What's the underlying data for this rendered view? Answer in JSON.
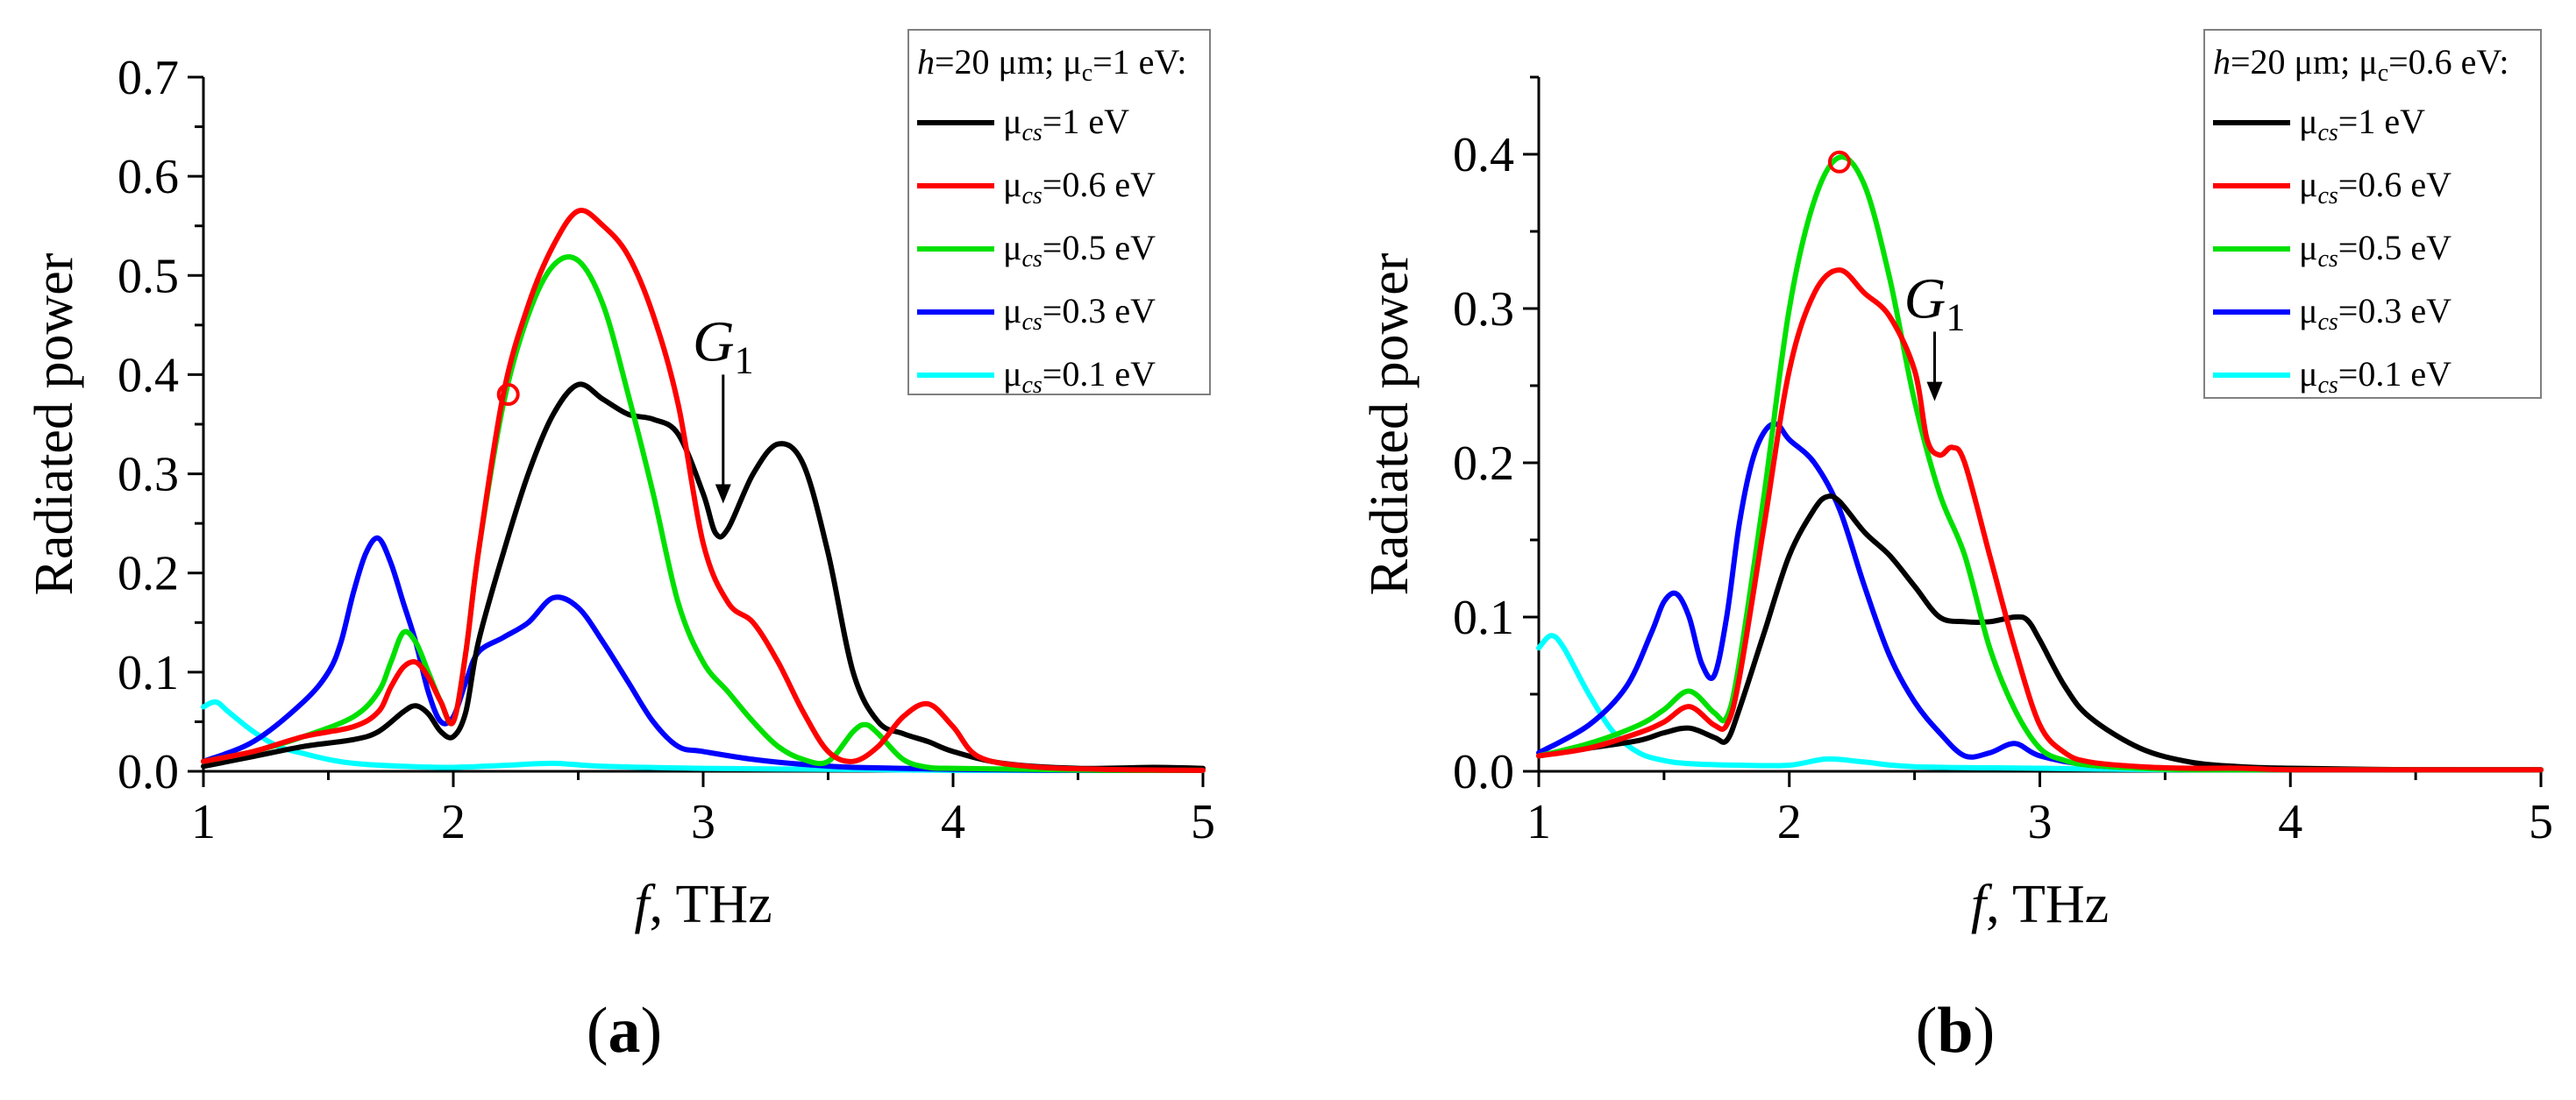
{
  "figure": {
    "panels": [
      {
        "label_open": "(",
        "label": "a",
        "label_close": ")"
      },
      {
        "label_open": "(",
        "label": "b",
        "label_close": ")"
      }
    ]
  },
  "chart_data": [
    {
      "type": "line",
      "panel": "a",
      "title": "",
      "xlabel_italic": "f",
      "xlabel_rest": ", THz",
      "ylabel": "Radiated power",
      "xlim": [
        1,
        5
      ],
      "ylim": [
        0,
        0.7
      ],
      "xticks": [
        1,
        2,
        3,
        4,
        5
      ],
      "yticks": [
        0.0,
        0.1,
        0.2,
        0.3,
        0.4,
        0.5,
        0.6,
        0.7
      ],
      "ytick_labels": [
        "0.0",
        "0.1",
        "0.2",
        "0.3",
        "0.4",
        "0.5",
        "0.6",
        "0.7"
      ],
      "legend": {
        "position": "top-right",
        "header": {
          "h": "h",
          "eq": "=20 μm; μ",
          "sub": "c",
          "rest": "=1 eV:"
        }
      },
      "annotation": {
        "text": "G",
        "sub": "1",
        "x": 3.08,
        "y_from": 0.4,
        "y_to": 0.27
      },
      "marker": {
        "x": 2.22,
        "y": 0.38
      },
      "series": [
        {
          "mu": "μ",
          "sub": "cs",
          "rest": "=1 eV",
          "color": "#000000",
          "x": [
            1.0,
            1.2,
            1.4,
            1.6,
            1.7,
            1.8,
            1.85,
            1.9,
            1.95,
            2.0,
            2.05,
            2.1,
            2.2,
            2.3,
            2.4,
            2.5,
            2.6,
            2.7,
            2.8,
            2.9,
            3.0,
            3.05,
            3.1,
            3.2,
            3.3,
            3.4,
            3.5,
            3.6,
            3.7,
            3.8,
            3.9,
            4.0,
            4.2,
            4.5,
            4.8,
            5.0
          ],
          "y": [
            0.005,
            0.015,
            0.025,
            0.032,
            0.04,
            0.06,
            0.066,
            0.058,
            0.04,
            0.035,
            0.06,
            0.13,
            0.22,
            0.3,
            0.36,
            0.39,
            0.375,
            0.36,
            0.355,
            0.34,
            0.28,
            0.24,
            0.245,
            0.3,
            0.33,
            0.31,
            0.22,
            0.1,
            0.05,
            0.038,
            0.03,
            0.02,
            0.008,
            0.003,
            0.004,
            0.003
          ]
        },
        {
          "mu": "μ",
          "sub": "cs",
          "rest": "=0.6 eV",
          "color": "#ff0000",
          "x": [
            1.0,
            1.2,
            1.4,
            1.6,
            1.7,
            1.75,
            1.8,
            1.85,
            1.9,
            1.95,
            2.0,
            2.05,
            2.1,
            2.2,
            2.3,
            2.4,
            2.5,
            2.6,
            2.7,
            2.8,
            2.9,
            3.0,
            3.1,
            3.2,
            3.3,
            3.4,
            3.5,
            3.6,
            3.7,
            3.8,
            3.9,
            4.0,
            4.1,
            4.3,
            4.6,
            5.0
          ],
          "y": [
            0.01,
            0.02,
            0.035,
            0.045,
            0.06,
            0.085,
            0.105,
            0.11,
            0.095,
            0.07,
            0.05,
            0.12,
            0.22,
            0.38,
            0.47,
            0.53,
            0.565,
            0.55,
            0.52,
            0.46,
            0.37,
            0.23,
            0.17,
            0.15,
            0.11,
            0.06,
            0.02,
            0.01,
            0.025,
            0.055,
            0.068,
            0.045,
            0.015,
            0.005,
            0.002,
            0.001
          ]
        },
        {
          "mu": "μ",
          "sub": "cs",
          "rest": "=0.5 eV",
          "color": "#00e000",
          "x": [
            1.0,
            1.2,
            1.4,
            1.6,
            1.7,
            1.75,
            1.8,
            1.85,
            1.9,
            1.95,
            2.0,
            2.05,
            2.1,
            2.2,
            2.3,
            2.4,
            2.5,
            2.6,
            2.7,
            2.8,
            2.9,
            3.0,
            3.1,
            3.2,
            3.3,
            3.4,
            3.5,
            3.6,
            3.65,
            3.7,
            3.8,
            3.9,
            4.0,
            4.3,
            4.6,
            5.0
          ],
          "y": [
            0.01,
            0.02,
            0.035,
            0.055,
            0.08,
            0.11,
            0.14,
            0.13,
            0.1,
            0.07,
            0.05,
            0.12,
            0.22,
            0.37,
            0.46,
            0.51,
            0.515,
            0.47,
            0.38,
            0.28,
            0.17,
            0.11,
            0.08,
            0.05,
            0.025,
            0.012,
            0.01,
            0.04,
            0.047,
            0.038,
            0.012,
            0.004,
            0.003,
            0.002,
            0.001,
            0.001
          ]
        },
        {
          "mu": "μ",
          "sub": "cs",
          "rest": "=0.3 eV",
          "color": "#0000ff",
          "x": [
            1.0,
            1.2,
            1.4,
            1.5,
            1.55,
            1.6,
            1.65,
            1.7,
            1.75,
            1.8,
            1.85,
            1.9,
            1.95,
            2.0,
            2.05,
            2.1,
            2.2,
            2.3,
            2.4,
            2.5,
            2.6,
            2.7,
            2.8,
            2.9,
            3.0,
            3.2,
            3.4,
            3.6,
            4.0,
            4.5,
            5.0
          ],
          "y": [
            0.01,
            0.03,
            0.07,
            0.1,
            0.13,
            0.18,
            0.22,
            0.235,
            0.21,
            0.17,
            0.13,
            0.08,
            0.05,
            0.055,
            0.09,
            0.12,
            0.135,
            0.15,
            0.175,
            0.165,
            0.13,
            0.09,
            0.05,
            0.025,
            0.02,
            0.012,
            0.007,
            0.004,
            0.002,
            0.001,
            0.001
          ]
        },
        {
          "mu": "μ",
          "sub": "cs",
          "rest": "=0.1 eV",
          "color": "#00ffff",
          "x": [
            1.0,
            1.05,
            1.1,
            1.2,
            1.3,
            1.4,
            1.5,
            1.6,
            1.8,
            2.0,
            2.2,
            2.4,
            2.6,
            3.0,
            3.5,
            4.0,
            4.5,
            5.0
          ],
          "y": [
            0.065,
            0.07,
            0.06,
            0.04,
            0.025,
            0.018,
            0.012,
            0.008,
            0.005,
            0.004,
            0.006,
            0.008,
            0.005,
            0.003,
            0.002,
            0.001,
            0.001,
            0.001
          ]
        }
      ]
    },
    {
      "type": "line",
      "panel": "b",
      "title": "",
      "xlabel_italic": "f",
      "xlabel_rest": ", THz",
      "ylabel": "Radiated power",
      "xlim": [
        1,
        5
      ],
      "ylim": [
        0,
        0.45
      ],
      "xticks": [
        1,
        2,
        3,
        4,
        5
      ],
      "yticks": [
        0.0,
        0.1,
        0.2,
        0.3,
        0.4
      ],
      "ytick_labels": [
        "0.0",
        "0.1",
        "0.2",
        "0.3",
        "0.4"
      ],
      "legend": {
        "position": "top-right",
        "header": {
          "h": "h",
          "eq": "=20 μm; μ",
          "sub": "c",
          "rest": "=0.6 eV:"
        }
      },
      "annotation": {
        "text": "G",
        "sub": "1",
        "x": 2.58,
        "y_from": 0.285,
        "y_to": 0.24
      },
      "marker": {
        "x": 2.2,
        "y": 0.395
      },
      "series": [
        {
          "mu": "μ",
          "sub": "cs",
          "rest": "=1 eV",
          "color": "#000000",
          "x": [
            1.0,
            1.2,
            1.4,
            1.5,
            1.6,
            1.7,
            1.75,
            1.8,
            1.9,
            2.0,
            2.1,
            2.15,
            2.2,
            2.3,
            2.4,
            2.5,
            2.6,
            2.7,
            2.8,
            2.9,
            2.95,
            3.0,
            3.1,
            3.2,
            3.4,
            3.6,
            3.8,
            4.0,
            4.5,
            5.0
          ],
          "y": [
            0.01,
            0.015,
            0.02,
            0.025,
            0.028,
            0.022,
            0.02,
            0.04,
            0.09,
            0.14,
            0.17,
            0.178,
            0.175,
            0.155,
            0.14,
            0.12,
            0.1,
            0.097,
            0.097,
            0.1,
            0.098,
            0.085,
            0.055,
            0.035,
            0.015,
            0.006,
            0.003,
            0.002,
            0.001,
            0.001
          ]
        },
        {
          "mu": "μ",
          "sub": "cs",
          "rest": "=0.6 eV",
          "color": "#ff0000",
          "x": [
            1.0,
            1.2,
            1.4,
            1.5,
            1.6,
            1.7,
            1.75,
            1.8,
            1.9,
            2.0,
            2.1,
            2.2,
            2.3,
            2.4,
            2.5,
            2.55,
            2.6,
            2.65,
            2.7,
            2.8,
            2.9,
            3.0,
            3.1,
            3.2,
            3.4,
            3.6,
            3.8,
            4.0,
            4.5,
            5.0
          ],
          "y": [
            0.01,
            0.015,
            0.025,
            0.032,
            0.042,
            0.03,
            0.03,
            0.06,
            0.16,
            0.26,
            0.31,
            0.325,
            0.31,
            0.295,
            0.26,
            0.215,
            0.205,
            0.21,
            0.2,
            0.14,
            0.08,
            0.03,
            0.012,
            0.006,
            0.003,
            0.002,
            0.002,
            0.001,
            0.001,
            0.001
          ]
        },
        {
          "mu": "μ",
          "sub": "cs",
          "rest": "=0.5 eV",
          "color": "#00e000",
          "x": [
            1.0,
            1.2,
            1.4,
            1.5,
            1.6,
            1.7,
            1.75,
            1.8,
            1.9,
            2.0,
            2.1,
            2.2,
            2.3,
            2.4,
            2.5,
            2.6,
            2.7,
            2.8,
            2.9,
            3.0,
            3.1,
            3.2,
            3.4,
            3.6,
            4.0,
            4.5,
            4.7,
            5.0
          ],
          "y": [
            0.01,
            0.018,
            0.03,
            0.04,
            0.052,
            0.038,
            0.035,
            0.07,
            0.18,
            0.3,
            0.37,
            0.398,
            0.38,
            0.32,
            0.24,
            0.18,
            0.14,
            0.08,
            0.04,
            0.015,
            0.007,
            0.004,
            0.002,
            0.001,
            0.001,
            0.001,
            0.001,
            0.001
          ]
        },
        {
          "mu": "μ",
          "sub": "cs",
          "rest": "=0.3 eV",
          "color": "#0000ff",
          "x": [
            1.0,
            1.2,
            1.35,
            1.45,
            1.5,
            1.55,
            1.6,
            1.65,
            1.7,
            1.75,
            1.8,
            1.85,
            1.9,
            1.95,
            2.0,
            2.1,
            2.2,
            2.3,
            2.4,
            2.5,
            2.6,
            2.7,
            2.8,
            2.9,
            3.0,
            3.2,
            3.5,
            4.0,
            5.0
          ],
          "y": [
            0.012,
            0.03,
            0.055,
            0.09,
            0.11,
            0.115,
            0.1,
            0.07,
            0.062,
            0.1,
            0.16,
            0.2,
            0.22,
            0.225,
            0.215,
            0.2,
            0.17,
            0.12,
            0.075,
            0.045,
            0.025,
            0.01,
            0.012,
            0.018,
            0.01,
            0.004,
            0.002,
            0.001,
            0.001
          ]
        },
        {
          "mu": "μ",
          "sub": "cs",
          "rest": "=0.1 eV",
          "color": "#00ffff",
          "x": [
            1.0,
            1.05,
            1.1,
            1.2,
            1.3,
            1.4,
            1.5,
            1.6,
            1.8,
            2.0,
            2.15,
            2.3,
            2.5,
            3.0,
            3.5,
            4.0,
            4.5,
            5.0
          ],
          "y": [
            0.08,
            0.088,
            0.08,
            0.05,
            0.025,
            0.012,
            0.007,
            0.005,
            0.004,
            0.004,
            0.008,
            0.006,
            0.003,
            0.002,
            0.001,
            0.001,
            0.001,
            0.001
          ]
        }
      ]
    }
  ]
}
